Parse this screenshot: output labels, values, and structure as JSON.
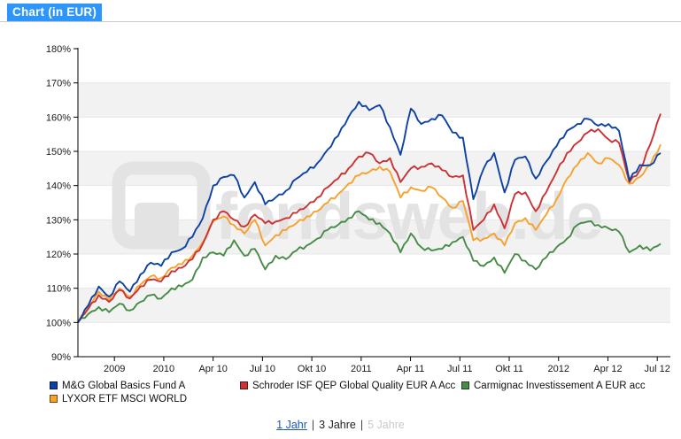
{
  "title": "Chart (in EUR)",
  "watermark": "fondsweb.de",
  "footer": {
    "separator": "|",
    "links": [
      {
        "label": "1 Jahr",
        "state": "link"
      },
      {
        "label": "3 Jahre",
        "state": "current"
      },
      {
        "label": "5 Jahre",
        "state": "disabled"
      }
    ]
  },
  "colors": {
    "title_bg": "#2e96fa",
    "band_gray": "#f2f2f2",
    "gridline": "#e7e7e7",
    "watermark": "#e3e3e3",
    "axis": "#000000"
  },
  "chart_data": {
    "type": "line",
    "title": "Chart (in EUR)",
    "unit": "%",
    "ylim": [
      90,
      180
    ],
    "y_tick_labels": [
      "180%",
      "170%",
      "160%",
      "150%",
      "140%",
      "130%",
      "120%",
      "110%",
      "100%",
      "90%"
    ],
    "x_tick_labels": [
      "2009",
      "2010",
      "Apr 10",
      "Jul 10",
      "Okt 10",
      "2011",
      "Apr 11",
      "Jul 11",
      "Okt 11",
      "2012",
      "Apr 12",
      "Jul 12"
    ],
    "grid": "horizontal-bands",
    "legend_position": "bottom",
    "series": [
      {
        "name": "M&G Global Basics Fund A",
        "color": "#0e41a4",
        "values": [
          100,
          105,
          110.5,
          107.5,
          112,
          109,
          114,
          117.5,
          116.5,
          120.5,
          121.5,
          125,
          130.5,
          140,
          142.5,
          143,
          136.5,
          141,
          134.5,
          136.5,
          138.5,
          142,
          144,
          146.5,
          150.5,
          154.5,
          160,
          164.5,
          162,
          163.5,
          157,
          149,
          162.5,
          158,
          159.5,
          160.5,
          155.5,
          154,
          136,
          145,
          149.5,
          138,
          147.5,
          148.5,
          142,
          147,
          151.5,
          156,
          158,
          159.5,
          157.5,
          158,
          156,
          141.5,
          146,
          146,
          149.5
        ]
      },
      {
        "name": "Schroder ISF QEP Global Quality EUR A Acc",
        "color": "#cc3233",
        "values": [
          100,
          104,
          108,
          106,
          109.5,
          107,
          110.5,
          112.5,
          112,
          115,
          116,
          118.5,
          123,
          130,
          132.5,
          130,
          128,
          131.5,
          129,
          129.5,
          130.5,
          132,
          134,
          136.5,
          139.5,
          142,
          145,
          148.5,
          149.5,
          146.5,
          148,
          141,
          145,
          145.5,
          146.5,
          144.5,
          142.5,
          143,
          127,
          130,
          134.5,
          127.5,
          137.5,
          138,
          132.5,
          138,
          144,
          149.5,
          152.5,
          155.5,
          156.5,
          153.5,
          152.5,
          141,
          144.5,
          152,
          161
        ]
      },
      {
        "name": "Carmignac Investissement A EUR acc",
        "color": "#468c46",
        "values": [
          100,
          102.5,
          104.5,
          103,
          105.5,
          103.5,
          106,
          108,
          107,
          110,
          110.5,
          112.5,
          119,
          120.5,
          119.5,
          124,
          119.5,
          121.5,
          115.5,
          119.5,
          118.5,
          121,
          122.5,
          124.5,
          127,
          128.5,
          130.5,
          132.5,
          130,
          129,
          126,
          120.5,
          126,
          122,
          121,
          121.5,
          123.5,
          125,
          118,
          116.5,
          119,
          114.5,
          120,
          118,
          115.5,
          119,
          122,
          124.5,
          128.5,
          129.5,
          128.5,
          127.5,
          126.5,
          120.5,
          122.5,
          121,
          123
        ]
      },
      {
        "name": "LYXOR ETF MSCI WORLD",
        "color": "#f6a22d",
        "values": [
          100,
          104.5,
          109,
          106.5,
          110,
          107.5,
          111,
          113.5,
          113,
          116,
          117,
          119.5,
          123.5,
          129.5,
          131,
          128.5,
          126,
          130,
          122.5,
          125.5,
          127,
          129,
          131,
          132.5,
          135,
          137.5,
          140.5,
          143,
          144,
          145.5,
          144,
          136.5,
          139.5,
          138.5,
          139.5,
          136.5,
          133.5,
          135.5,
          124,
          124.5,
          126,
          122.5,
          129,
          130.5,
          127,
          131.5,
          136,
          142,
          146,
          149.5,
          146.5,
          148,
          146,
          140.5,
          142.5,
          146,
          152
        ]
      }
    ]
  }
}
